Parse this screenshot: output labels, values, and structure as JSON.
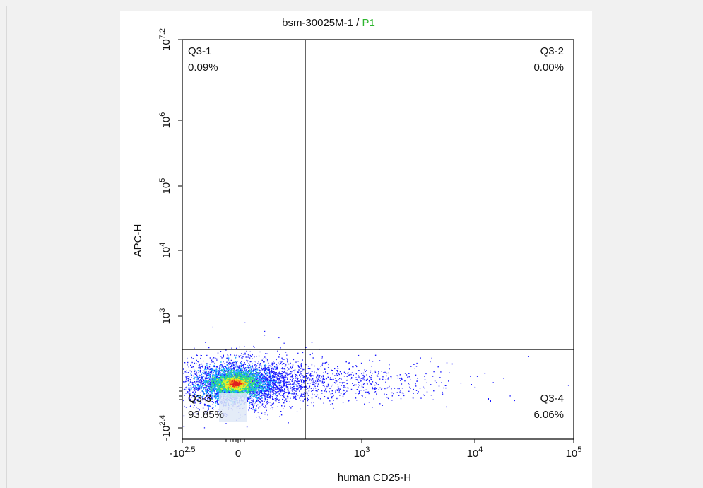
{
  "title": {
    "sample": "bsm-30025M-1",
    "separator": " / ",
    "gate": "P1",
    "gate_color": "#2db52d"
  },
  "chart_data": {
    "type": "scatter",
    "subtype": "flow-cytometry-density-dot-plot-with-quadrant-gate",
    "title": "bsm-30025M-1 / P1",
    "xlabel": "human CD25-H",
    "ylabel": "APC-H",
    "x_scale": "biexponential",
    "y_scale": "biexponential",
    "x_ticks": [
      {
        "base": "-10",
        "exp": "2.5"
      },
      {
        "base": "0",
        "exp": ""
      },
      {
        "base": "10",
        "exp": "3"
      },
      {
        "base": "10",
        "exp": "4"
      },
      {
        "base": "10",
        "exp": "5"
      }
    ],
    "y_ticks": [
      {
        "base": "-10",
        "exp": "2.4"
      },
      {
        "base": "10",
        "exp": "3"
      },
      {
        "base": "10",
        "exp": "4"
      },
      {
        "base": "10",
        "exp": "5"
      },
      {
        "base": "10",
        "exp": "6"
      },
      {
        "base": "10",
        "exp": "7.2"
      }
    ],
    "quadrants": [
      {
        "name": "Q3-1",
        "percent": "0.09%",
        "position": "top-left"
      },
      {
        "name": "Q3-2",
        "percent": "0.00%",
        "position": "top-right"
      },
      {
        "name": "Q3-3",
        "percent": "93.85%",
        "position": "bottom-left"
      },
      {
        "name": "Q3-4",
        "percent": "6.06%",
        "position": "bottom-right"
      }
    ],
    "density_colors": [
      "#1a1aff",
      "#19b4ff",
      "#2ee07a",
      "#e8f02a",
      "#ff8a1a",
      "#e02020"
    ],
    "grid": false,
    "legend": "none"
  }
}
